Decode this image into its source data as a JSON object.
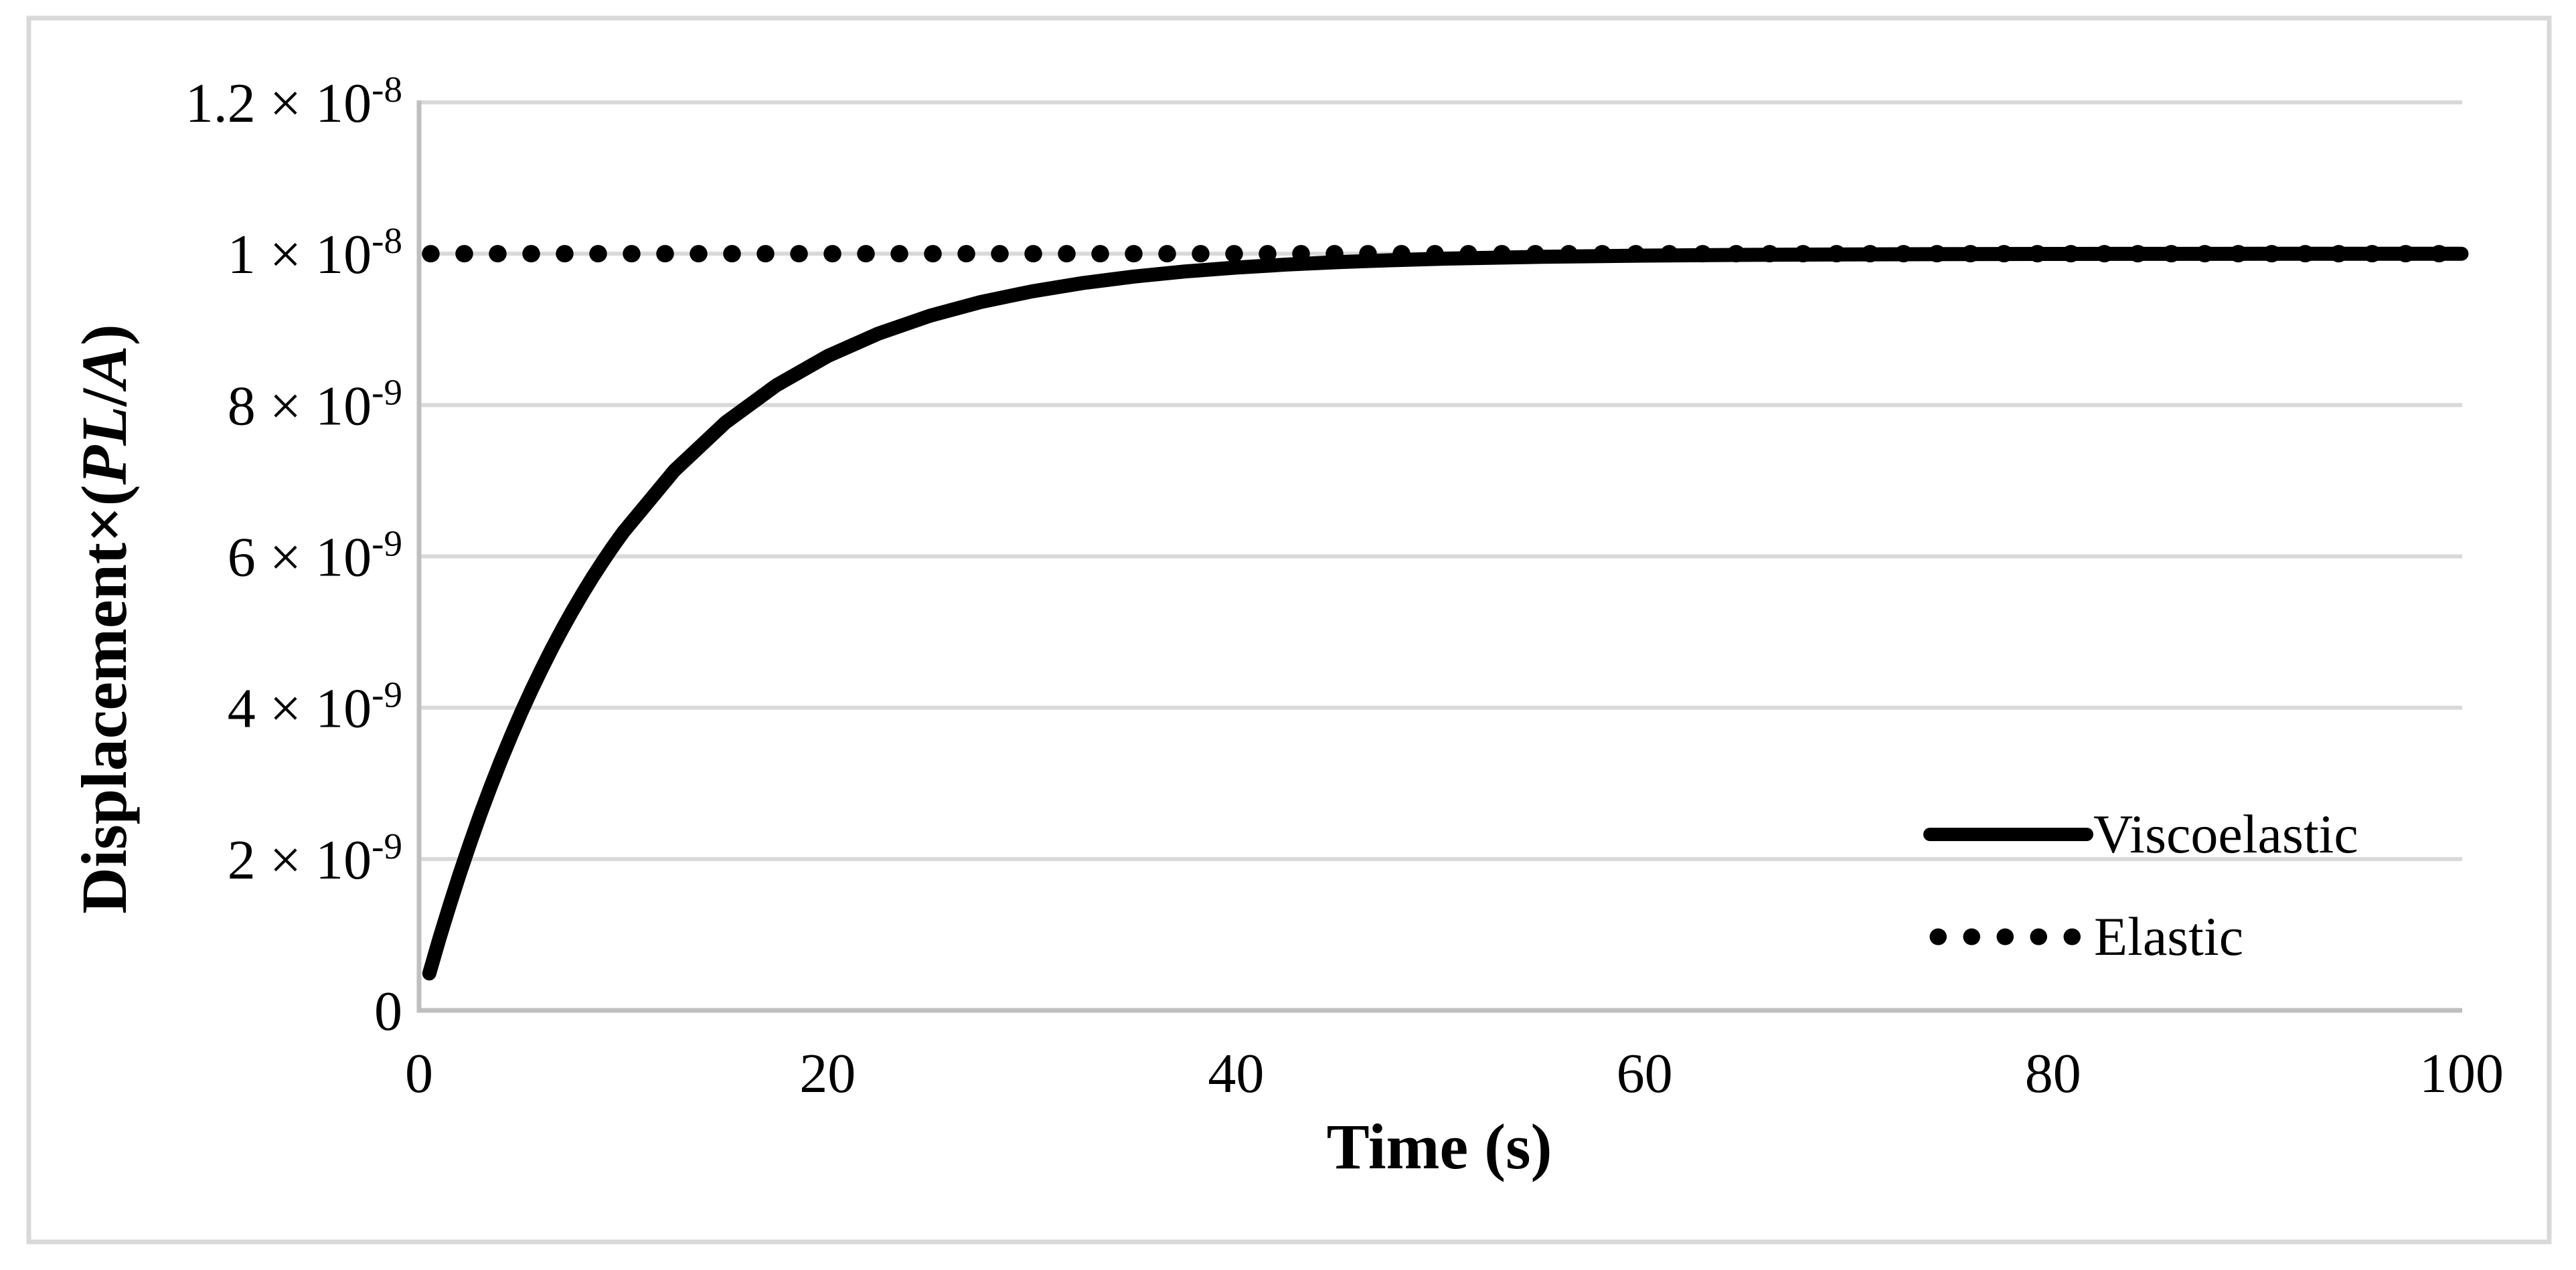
{
  "figure": {
    "background": "#ffffff",
    "border_color": "#d9d9d9",
    "text_color": "#000000"
  },
  "chart_data": {
    "type": "line",
    "title": "",
    "xlabel": "Time (s)",
    "ylabel": "Displacement×(PL/A)",
    "ylabel_parts": [
      {
        "t": "Displacement×(",
        "i": false
      },
      {
        "t": "PL",
        "i": true
      },
      {
        "t": "/",
        "i": false
      },
      {
        "t": "A",
        "i": true
      },
      {
        "t": ")",
        "i": false
      }
    ],
    "xlim": [
      0,
      100
    ],
    "ylim": [
      0,
      1.2e-08
    ],
    "grid": true,
    "grid_color": "#d9d9d9",
    "axis_color": "#bfbfbf",
    "series_color": "#000000",
    "legend_position": "inside-right",
    "xticks": [
      {
        "value": 0,
        "label": "0"
      },
      {
        "value": 20,
        "label": "20"
      },
      {
        "value": 40,
        "label": "40"
      },
      {
        "value": 60,
        "label": "60"
      },
      {
        "value": 80,
        "label": "80"
      },
      {
        "value": 100,
        "label": "100"
      }
    ],
    "yticks": [
      {
        "value_e9": 12,
        "base": "1.2 × 10",
        "sup": "-8"
      },
      {
        "value_e9": 10,
        "base": "1 × 10",
        "sup": "-8"
      },
      {
        "value_e9": 8,
        "base": "8 × 10",
        "sup": "-9"
      },
      {
        "value_e9": 6,
        "base": "6 × 10",
        "sup": "-9"
      },
      {
        "value_e9": 4,
        "base": "4 × 10",
        "sup": "-9"
      },
      {
        "value_e9": 2,
        "base": "2 × 10",
        "sup": "-9"
      },
      {
        "value_e9": 0,
        "base": "0",
        "sup": ""
      }
    ],
    "series": [
      {
        "name": "Viscoelastic",
        "style": "solid",
        "model": "d(t) = 1e-8 * (1 - exp(-t/10))",
        "points_t_de9": [
          [
            0.5,
            0.488
          ],
          [
            1,
            0.952
          ],
          [
            1.5,
            1.393
          ],
          [
            2,
            1.813
          ],
          [
            2.5,
            2.212
          ],
          [
            3,
            2.592
          ],
          [
            3.5,
            2.953
          ],
          [
            4,
            3.297
          ],
          [
            4.5,
            3.624
          ],
          [
            5,
            3.935
          ],
          [
            5.5,
            4.231
          ],
          [
            6,
            4.512
          ],
          [
            6.5,
            4.78
          ],
          [
            7,
            5.034
          ],
          [
            7.5,
            5.276
          ],
          [
            8,
            5.507
          ],
          [
            8.5,
            5.726
          ],
          [
            9,
            5.934
          ],
          [
            9.5,
            6.133
          ],
          [
            10,
            6.321
          ],
          [
            12.5,
            7.135
          ],
          [
            15,
            7.769
          ],
          [
            17.5,
            8.262
          ],
          [
            20,
            8.647
          ],
          [
            22.5,
            8.946
          ],
          [
            25,
            9.179
          ],
          [
            27.5,
            9.361
          ],
          [
            30,
            9.502
          ],
          [
            32.5,
            9.612
          ],
          [
            35,
            9.698
          ],
          [
            37.5,
            9.765
          ],
          [
            40,
            9.817
          ],
          [
            42.5,
            9.857
          ],
          [
            45,
            9.889
          ],
          [
            47.5,
            9.913
          ],
          [
            50,
            9.933
          ],
          [
            55,
            9.959
          ],
          [
            60,
            9.975
          ],
          [
            65,
            9.985
          ],
          [
            70,
            9.991
          ],
          [
            75,
            9.994
          ],
          [
            80,
            9.997
          ],
          [
            85,
            9.998
          ],
          [
            90,
            9.999
          ],
          [
            95,
            9.999
          ],
          [
            100,
            10.0
          ]
        ]
      },
      {
        "name": "Elastic",
        "style": "dotted",
        "value_e9": 10.0,
        "t_start": 0.5,
        "t_end": 100
      }
    ]
  }
}
